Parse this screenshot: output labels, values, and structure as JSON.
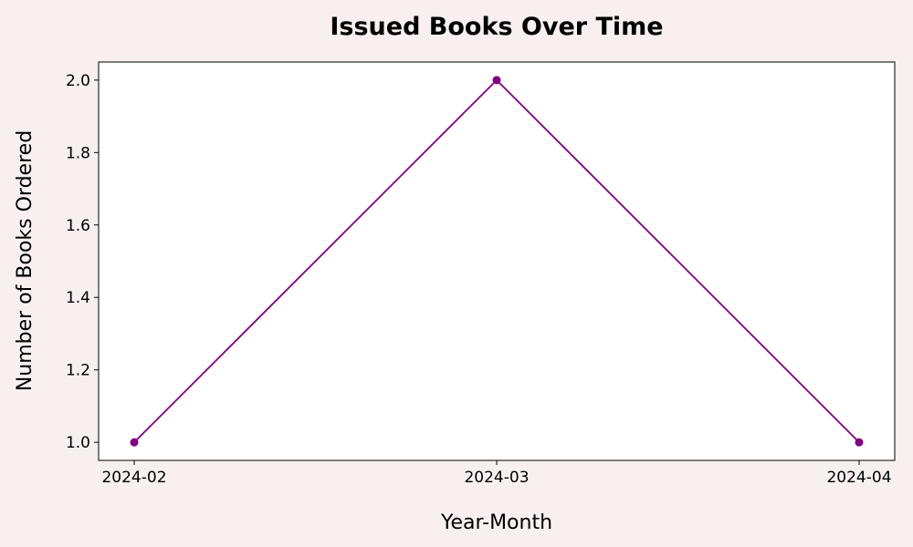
{
  "chart_data": {
    "type": "line",
    "title": "Issued Books Over Time",
    "xlabel": "Year-Month",
    "ylabel": "Number of Books Ordered",
    "x": [
      "2024-02",
      "2024-03",
      "2024-04"
    ],
    "series": [
      {
        "values": [
          1.0,
          2.0,
          1.0
        ],
        "color": "#800080"
      }
    ],
    "yticks": [
      "1.0",
      "1.2",
      "1.4",
      "1.6",
      "1.8",
      "2.0"
    ],
    "ylim": [
      0.95,
      2.05
    ],
    "grid": false,
    "legend": "none",
    "colors": {
      "background": "#f7f0ee",
      "plot_background": "#ffffff",
      "line": "#800080"
    }
  }
}
